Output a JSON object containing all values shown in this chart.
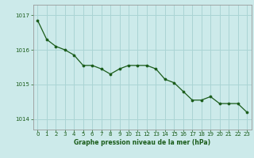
{
  "x": [
    0,
    1,
    2,
    3,
    4,
    5,
    6,
    7,
    8,
    9,
    10,
    11,
    12,
    13,
    14,
    15,
    16,
    17,
    18,
    19,
    20,
    21,
    22,
    23
  ],
  "y": [
    1016.85,
    1016.3,
    1016.1,
    1016.0,
    1015.85,
    1015.55,
    1015.55,
    1015.45,
    1015.3,
    1015.45,
    1015.55,
    1015.55,
    1015.55,
    1015.45,
    1015.15,
    1015.05,
    1014.8,
    1014.55,
    1014.55,
    1014.65,
    1014.45,
    1014.45,
    1014.45,
    1014.2
  ],
  "line_color": "#1a5c1a",
  "marker_color": "#1a5c1a",
  "bg_color": "#cceaea",
  "grid_color": "#aad4d4",
  "axis_label_color": "#1a5c1a",
  "xlabel": "Graphe pression niveau de la mer (hPa)",
  "yticks": [
    1014,
    1015,
    1016,
    1017
  ],
  "ylim": [
    1013.7,
    1017.3
  ],
  "xlim": [
    -0.5,
    23.5
  ],
  "xticks": [
    0,
    1,
    2,
    3,
    4,
    5,
    6,
    7,
    8,
    9,
    10,
    11,
    12,
    13,
    14,
    15,
    16,
    17,
    18,
    19,
    20,
    21,
    22,
    23
  ]
}
